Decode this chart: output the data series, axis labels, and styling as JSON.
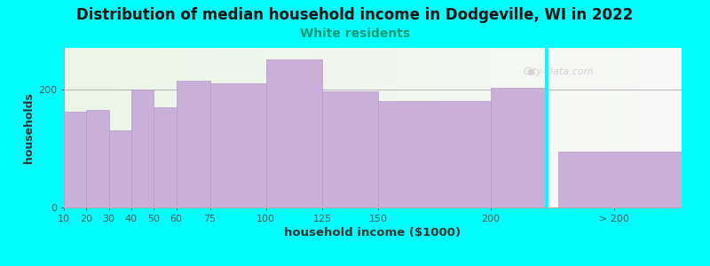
{
  "title": "Distribution of median household income in Dodgeville, WI in 2022",
  "subtitle": "White residents",
  "xlabel": "household income ($1000)",
  "ylabel": "households",
  "background_outer": "#00FFFF",
  "bar_color": "#c8b0d8",
  "bar_edge_color": "#b898c8",
  "title_fontsize": 12,
  "subtitle_fontsize": 10,
  "subtitle_color": "#009977",
  "xlabel_fontsize": 9.5,
  "ylabel_fontsize": 9,
  "tick_fontsize": 8,
  "categories": [
    "10",
    "20",
    "30",
    "40",
    "50",
    "60",
    "75",
    "100",
    "125",
    "150",
    "200",
    "> 200"
  ],
  "values": [
    162,
    165,
    130,
    200,
    170,
    215,
    210,
    250,
    197,
    180,
    202,
    95
  ],
  "bar_lefts": [
    10,
    20,
    30,
    40,
    50,
    60,
    75,
    100,
    125,
    150,
    200,
    230
  ],
  "bar_widths": [
    10,
    10,
    10,
    10,
    10,
    15,
    25,
    25,
    25,
    50,
    25,
    55
  ],
  "xlim": [
    10,
    285
  ],
  "ylim": [
    0,
    270
  ],
  "yticks": [
    0,
    200
  ],
  "xtick_pos": [
    10,
    20,
    30,
    40,
    50,
    60,
    75,
    100,
    125,
    150,
    200,
    255
  ],
  "xtick_labels": [
    "10",
    "20",
    "30",
    "40",
    "50",
    "60",
    "75",
    "100",
    "125",
    "150",
    "200",
    "> 200"
  ],
  "watermark": "City-Data.com",
  "gap_start": 225,
  "gap_end": 230
}
